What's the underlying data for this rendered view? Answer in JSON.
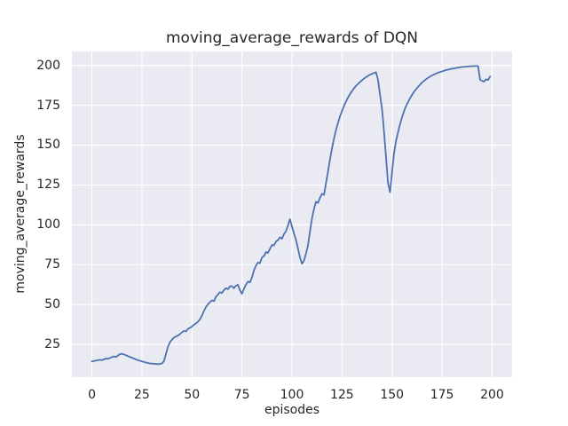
{
  "chart_data": {
    "type": "line",
    "title": "moving_average_rewards of DQN",
    "xlabel": "episodes",
    "ylabel": "moving_average_rewards",
    "xlim": [
      -10,
      210
    ],
    "ylim": [
      4.5,
      208.7
    ],
    "xticks": [
      0,
      25,
      50,
      75,
      100,
      125,
      150,
      175,
      200
    ],
    "yticks": [
      25,
      50,
      75,
      100,
      125,
      150,
      175,
      200
    ],
    "grid": true,
    "legend": "none",
    "colors": {
      "line": "#4C72B0",
      "plot_background": "#EAEAF2",
      "grid": "#FFFFFF",
      "text": "#262626",
      "figure_background": "#FFFFFF"
    },
    "series": [
      {
        "name": "moving_average_rewards",
        "x_start": 0,
        "x_step": 1,
        "y": [
          14.4,
          14.6,
          14.9,
          15.1,
          15.4,
          15.2,
          15.7,
          16.2,
          16.0,
          16.5,
          17.1,
          17.5,
          17.2,
          18.1,
          18.9,
          19.2,
          18.8,
          18.3,
          17.7,
          17.2,
          16.7,
          16.2,
          15.7,
          15.2,
          14.8,
          14.4,
          14.0,
          13.7,
          13.4,
          13.1,
          13.0,
          12.9,
          12.8,
          12.7,
          12.8,
          13.2,
          14.5,
          19.0,
          23.5,
          26.5,
          28.0,
          29.3,
          30.0,
          30.6,
          31.5,
          32.6,
          33.5,
          33.2,
          34.8,
          35.3,
          36.3,
          37.4,
          38.2,
          39.2,
          40.8,
          43.0,
          46.0,
          48.5,
          50.2,
          51.5,
          52.7,
          52.2,
          54.9,
          56.4,
          57.8,
          57.3,
          59.1,
          60.3,
          59.7,
          61.4,
          61.6,
          60.3,
          61.9,
          62.4,
          58.9,
          56.8,
          60.0,
          62.5,
          64.5,
          64.0,
          67.0,
          71.5,
          74.5,
          76.4,
          76.0,
          79.5,
          80.5,
          82.9,
          82.4,
          85.0,
          87.4,
          87.1,
          89.5,
          90.4,
          92.2,
          91.3,
          94.2,
          96.0,
          99.6,
          103.6,
          99.0,
          94.5,
          90.5,
          85.0,
          79.5,
          75.6,
          77.5,
          82.0,
          87.0,
          96.0,
          104.0,
          110.0,
          114.5,
          113.8,
          117.0,
          119.5,
          118.8,
          126.0,
          133.5,
          141.0,
          148.0,
          154.0,
          159.5,
          164.0,
          168.0,
          171.5,
          174.6,
          177.4,
          179.8,
          182.0,
          183.9,
          185.6,
          187.1,
          188.4,
          189.6,
          190.7,
          191.7,
          192.6,
          193.4,
          194.1,
          194.7,
          195.2,
          195.7,
          191.0,
          181.5,
          172.5,
          158.5,
          142.0,
          126.0,
          120.5,
          133.0,
          145.0,
          152.5,
          158.0,
          163.0,
          167.5,
          171.3,
          174.4,
          177.0,
          179.4,
          181.5,
          183.4,
          185.0,
          186.5,
          187.9,
          189.2,
          190.3,
          191.3,
          192.2,
          193.0,
          193.7,
          194.3,
          194.9,
          195.4,
          195.8,
          196.2,
          196.6,
          197.0,
          197.3,
          197.6,
          197.9,
          198.1,
          198.4,
          198.6,
          198.8,
          199.0,
          199.1,
          199.2,
          199.3,
          199.4,
          199.5,
          199.5,
          199.6,
          199.6,
          191.0,
          190.3,
          189.8,
          191.3,
          190.8,
          193.0
        ]
      }
    ]
  }
}
